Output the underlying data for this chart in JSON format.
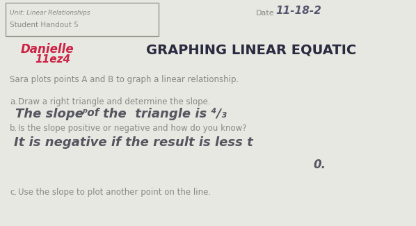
{
  "background_color": "#d8d8d0",
  "paper_color": "#e8e8e2",
  "header_box_text1": "Unit: Linear Relationships",
  "header_box_text2": "Student Handout 5",
  "date_label": "Date",
  "date_value": "11-18-2",
  "title": "GRAPHING LINEAR EQUATIC",
  "name_line1": "Danielle",
  "name_line2": "11ez4",
  "body_text1": "Sara plots points A and B to graph a linear relationship.",
  "item_a_label": "a.",
  "item_a_text": "Draw a right triangle and determine the slope.",
  "item_a_handwritten": "The slope  of  the  triangle is 4/3",
  "item_b_label": "b.",
  "item_b_text": "Is the slope positive or negative and how do you know?",
  "item_b_handwritten": "It is negative if the result is less t",
  "item_b_handwritten2": "0.",
  "item_c_label": "c.",
  "item_c_text": "Use the slope to plot another point on the line.",
  "text_color": "#888884",
  "title_color": "#2a2a40",
  "name_color": "#cc2244",
  "handwritten_color": "#555560",
  "box_edge_color": "#999990",
  "date_handwritten_color": "#555570"
}
